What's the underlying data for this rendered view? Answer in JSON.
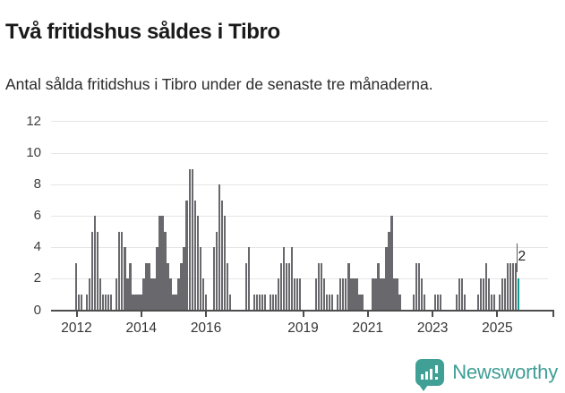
{
  "header": {
    "title": "Två fritidshus såldes i Tibro",
    "subtitle": "Antal sålda fritidshus i Tibro under de senaste tre månaderna."
  },
  "annotation": {
    "label": "2"
  },
  "branding": {
    "name": "Newsworthy",
    "icon": "newsworthy-bubble-chart-icon"
  },
  "colors": {
    "bar": "#68686d",
    "highlight": "#119a92",
    "brand_teal": "#3f9e95",
    "grid": "#e5e5e5",
    "axis": "#4d4d4d"
  },
  "chart_data": {
    "type": "bar",
    "title": "Två fritidshus såldes i Tibro",
    "subtitle": "Antal sålda fritidshus i Tibro under de senaste tre månaderna.",
    "xlabel": "",
    "ylabel": "",
    "ylim": [
      0,
      12
    ],
    "y_ticks": [
      0,
      2,
      4,
      6,
      8,
      10,
      12
    ],
    "x_tick_years": [
      2012,
      2014,
      2016,
      2019,
      2021,
      2023,
      2025
    ],
    "grid": "horizontal",
    "legend": "none",
    "series_start": "2012-01",
    "series_end": "2025-09",
    "highlight_last_bar": true,
    "last_bar_annotation": "2",
    "monthly_values_by_year": {
      "2012": [
        3,
        1,
        1,
        0,
        1,
        2,
        5,
        6,
        5,
        2,
        1,
        1
      ],
      "2013": [
        1,
        1,
        0,
        2,
        5,
        5,
        4,
        2,
        3,
        1,
        1,
        1
      ],
      "2014": [
        1,
        2,
        3,
        3,
        2,
        2,
        4,
        6,
        6,
        5,
        3,
        2
      ],
      "2015": [
        1,
        1,
        2,
        3,
        4,
        7,
        9,
        9,
        7,
        6,
        4,
        2
      ],
      "2016": [
        1,
        0,
        0,
        4,
        5,
        8,
        7,
        6,
        3,
        1,
        0,
        0
      ],
      "2017": [
        0,
        0,
        0,
        3,
        4,
        0,
        1,
        1,
        1,
        1,
        1,
        0
      ],
      "2018": [
        1,
        1,
        1,
        2,
        3,
        4,
        3,
        3,
        4,
        2,
        2,
        2
      ],
      "2019": [
        0,
        0,
        0,
        0,
        0,
        2,
        3,
        3,
        2,
        1,
        1,
        1
      ],
      "2020": [
        0,
        1,
        2,
        2,
        2,
        3,
        2,
        2,
        2,
        1,
        1,
        0
      ],
      "2021": [
        0,
        0,
        2,
        2,
        3,
        2,
        2,
        4,
        5,
        6,
        2,
        2
      ],
      "2022": [
        1,
        0,
        0,
        0,
        0,
        1,
        3,
        3,
        2,
        1,
        0,
        0
      ],
      "2023": [
        0,
        1,
        1,
        1,
        0,
        0,
        0,
        0,
        0,
        1,
        2,
        2
      ],
      "2024": [
        1,
        0,
        0,
        0,
        0,
        1,
        2,
        2,
        3,
        2,
        1,
        1
      ],
      "2025": [
        0,
        1,
        2,
        2,
        3,
        3,
        3,
        3,
        2
      ]
    }
  }
}
